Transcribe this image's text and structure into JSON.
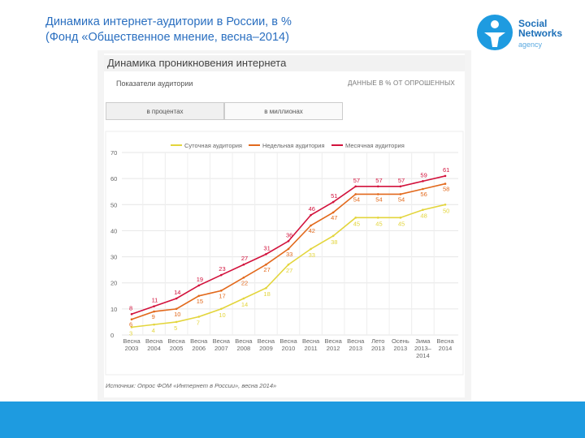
{
  "header": {
    "title": "Динамика интернет-аудитории в России, в %",
    "subtitle": "(Фонд «Общественное мнение, весна–2014)",
    "logo": "Social Networks",
    "logo_sub": "agency"
  },
  "chart_data": {
    "type": "line",
    "title": "Динамика проникновения интернета",
    "note_left": "Показатели аудитории",
    "note_right": "ДАННЫЕ В % ОТ ОПРОШЕННЫХ",
    "tabs": [
      "в процентах",
      "в миллионах"
    ],
    "source": "Источник: Опрос ФОМ «Интернет в России», весна 2014»",
    "categories": [
      "Весна 2003",
      "Весна 2004",
      "Весна 2005",
      "Весна 2006",
      "Весна 2007",
      "Весна 2008",
      "Весна 2009",
      "Весна 2010",
      "Весна 2011",
      "Весна 2012",
      "Весна 2013",
      "Лето 2013",
      "Осень 2013",
      "Зима 2013–2014",
      "Весна 2014"
    ],
    "series": [
      {
        "name": "Суточная аудитория",
        "color": "#e3d53c",
        "values": [
          3,
          4,
          5,
          7,
          10,
          14,
          18,
          27,
          33,
          38,
          45,
          45,
          45,
          48,
          50
        ]
      },
      {
        "name": "Недельная аудитория",
        "color": "#e2691c",
        "values": [
          6,
          9,
          10,
          15,
          17,
          22,
          27,
          33,
          42,
          47,
          54,
          54,
          54,
          56,
          58
        ]
      },
      {
        "name": "Месячная аудитория",
        "color": "#d2123c",
        "values": [
          8,
          11,
          14,
          19,
          23,
          27,
          31,
          36,
          46,
          51,
          57,
          57,
          57,
          59,
          61
        ]
      }
    ],
    "ylim": [
      0,
      70
    ],
    "yticks": [
      0,
      10,
      20,
      30,
      40,
      50,
      60,
      70
    ],
    "grid": true
  }
}
